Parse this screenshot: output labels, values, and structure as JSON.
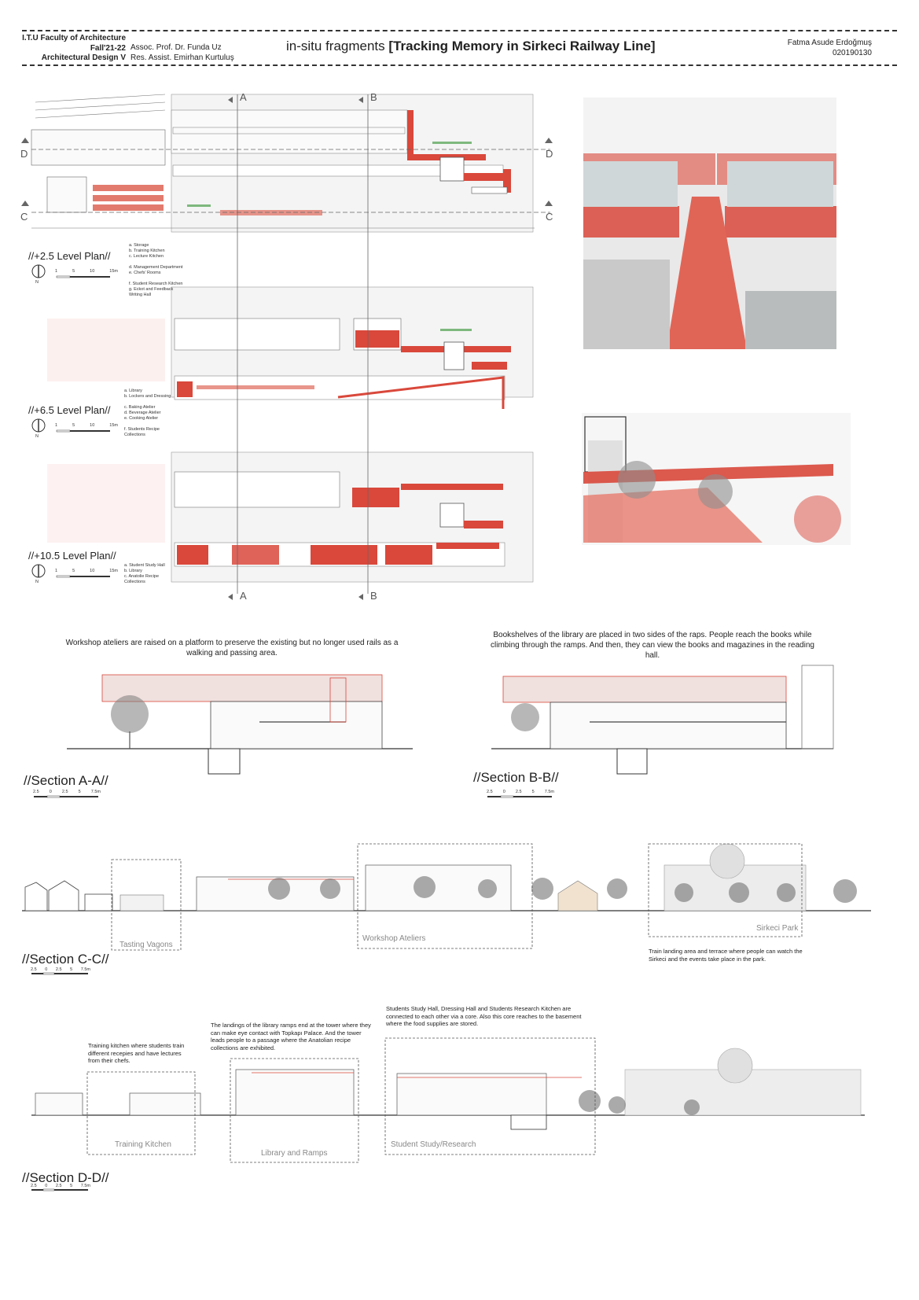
{
  "header": {
    "left": [
      "I.T.U Faculty of Architecture",
      "Fall'21-22",
      "Architectural Design V"
    ],
    "middle": [
      "Assoc. Prof. Dr. Funda Uz",
      "Res. Assist. Emirhan Kurtuluş"
    ],
    "title_prefix": "in-situ fragments",
    "title_main": "[Tracking Memory in Sirkeci Railway Line]",
    "author": "Fatma Asude Erdoğmuş",
    "student_no": "020190130"
  },
  "axes": {
    "a": "A",
    "b": "B",
    "c": "C",
    "d": "D"
  },
  "plans": [
    {
      "label": "//+2.5 Level Plan//",
      "legend": [
        "a. Storage",
        "b. Training Kitchen",
        "c. Lecture Kitchen",
        "",
        "d. Management Department",
        "e. Chefs' Rooms",
        "",
        "f. Student Research Kitchen",
        "g. Eckot and Feedback",
        "Writing Hall"
      ]
    },
    {
      "label": "//+6.5 Level Plan//",
      "legend": [
        "a. Library",
        "b. Lockers and Dressing",
        "",
        "c. Baking Atelier",
        "d. Beverage Atelier",
        "e. Cooking Atelier",
        "",
        "f. Students Recipe",
        "Collections"
      ]
    },
    {
      "label": "//+10.5 Level Plan//",
      "legend": [
        "a. Student Study Hall",
        "b. Library",
        "c. Anatolie Recipe",
        "Collections"
      ]
    }
  ],
  "north": "N",
  "scale_plan": [
    "1",
    "5",
    "10",
    "15m"
  ],
  "scale_sec": [
    "2.5",
    "0",
    "2.5",
    "5",
    "7.5m"
  ],
  "captions": {
    "a": "Workshop ateliers are raised on a platform to preserve the existing but no longer used rails as a walking and passing area.",
    "b": "Bookshelves of the library are placed in two sides of the raps. People reach the books while climbing through the ramps. And then, they can view the books and magazines in the reading hall.",
    "c_park": "Train landing area and terrace where people can watch the Sirkeci and the events take place in the park.",
    "d_kitchen": "Training kitchen where students train different recepies and have lectures from their chefs.",
    "d_library": "The landings of the library ramps end at the tower where they can make eye contact with Topkapı Palace. And the tower leads people to a passage where the Anatolian recipe collections are exhibited.",
    "d_study": "Students Study Hall, Dressing Hall and Students Research Kitchen are connected to each other via a core. Also this core reaches to the basement where the food supplies are stored."
  },
  "sections": {
    "aa": "//Section A-A//",
    "bb": "//Section B-B//",
    "cc": "//Section C-C//",
    "dd": "//Section D-D//"
  },
  "boxes": {
    "tasting": "Tasting Vagons",
    "workshop": "Workshop Ateliers",
    "park": "Sirkeci Park",
    "kitchen": "Training Kitchen",
    "library": "Library and Ramps",
    "study": "Student Study/Research"
  },
  "colors": {
    "accent": "#d9483b",
    "accent_light": "#f1b9b2",
    "ink": "#333333",
    "grey": "#bdbdbd"
  }
}
